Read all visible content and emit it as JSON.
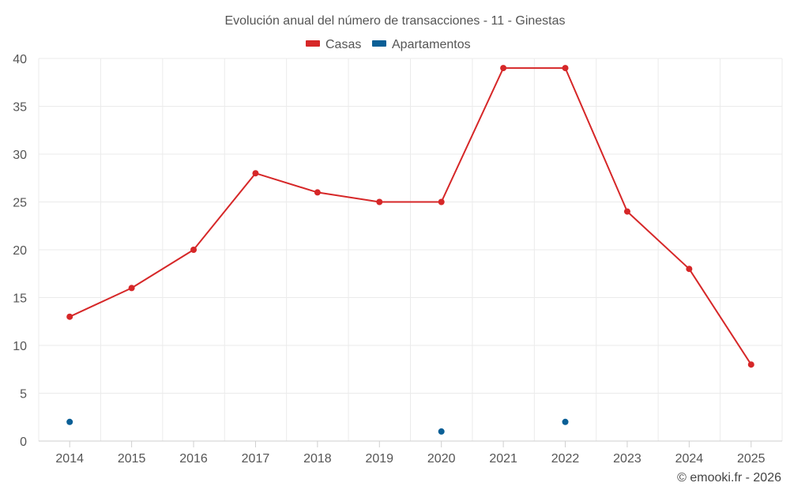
{
  "chart_data": {
    "type": "line",
    "title": "Evolución anual del número de transacciones - 11 - Ginestas",
    "categories": [
      "2014",
      "2015",
      "2016",
      "2017",
      "2018",
      "2019",
      "2020",
      "2021",
      "2022",
      "2023",
      "2024",
      "2025"
    ],
    "series": [
      {
        "name": "Casas",
        "color": "#d62728",
        "values": [
          13,
          16,
          20,
          28,
          26,
          25,
          25,
          39,
          39,
          24,
          18,
          8
        ]
      },
      {
        "name": "Apartamentos",
        "color": "#0a5f96",
        "values": [
          2,
          null,
          null,
          null,
          null,
          null,
          1,
          null,
          2,
          null,
          null,
          null
        ]
      }
    ],
    "ylim": [
      0,
      40
    ],
    "yticks": [
      0,
      5,
      10,
      15,
      20,
      25,
      30,
      35,
      40
    ],
    "grid": true,
    "legend_position": "top-center",
    "xlabel": "",
    "ylabel": ""
  },
  "credit": "© emooki.fr - 2026"
}
